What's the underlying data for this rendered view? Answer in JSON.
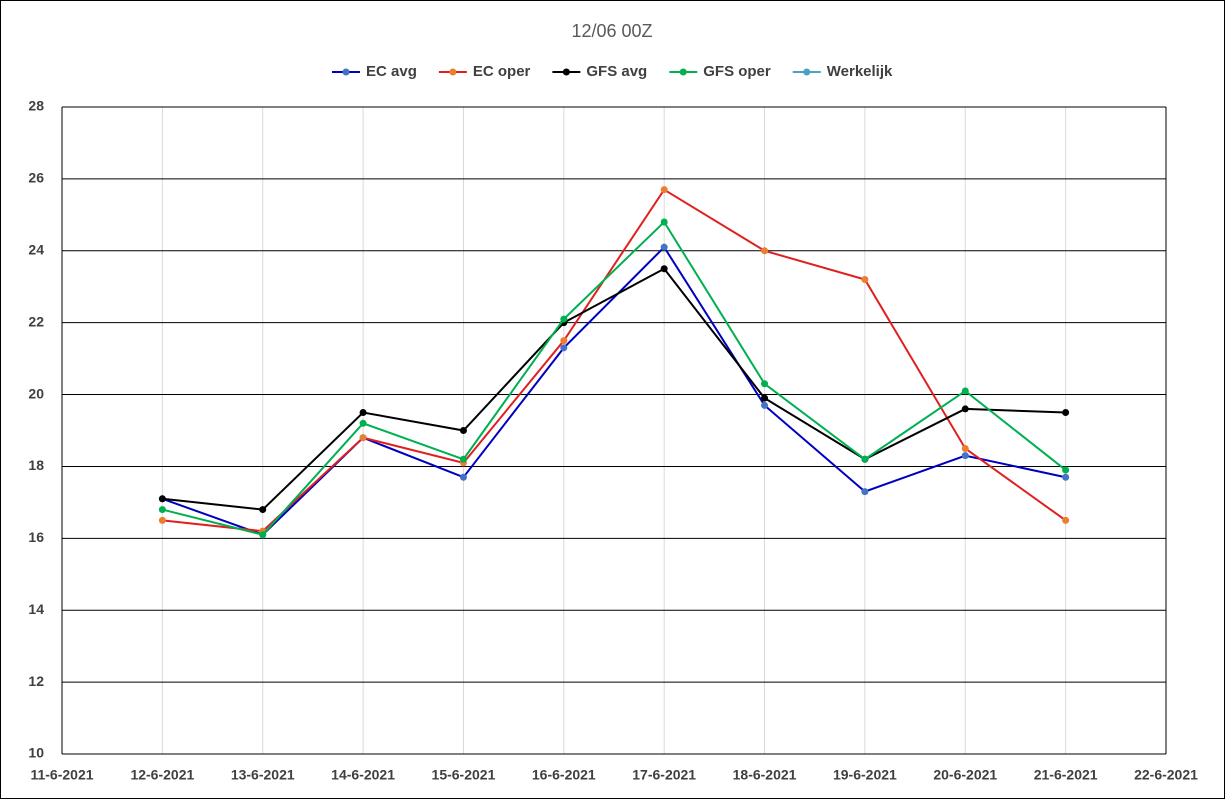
{
  "chart_data": {
    "type": "line",
    "title": "12/06 00Z",
    "categories": [
      "11-6-2021",
      "12-6-2021",
      "13-6-2021",
      "14-6-2021",
      "15-6-2021",
      "16-6-2021",
      "17-6-2021",
      "18-6-2021",
      "19-6-2021",
      "20-6-2021",
      "21-6-2021",
      "22-6-2021"
    ],
    "series": [
      {
        "name": "EC avg",
        "color": "#0000c0",
        "marker_color": "#4472c4",
        "values": [
          null,
          17.1,
          16.1,
          18.8,
          17.7,
          21.3,
          24.1,
          19.7,
          17.3,
          18.3,
          17.7,
          null
        ]
      },
      {
        "name": "EC oper",
        "color": "#e02020",
        "marker_color": "#ed7d31",
        "values": [
          null,
          16.5,
          16.2,
          18.8,
          18.1,
          21.5,
          25.7,
          24.0,
          23.2,
          18.5,
          16.5,
          null
        ]
      },
      {
        "name": "GFS avg",
        "color": "#000000",
        "marker_color": "#000000",
        "values": [
          null,
          17.1,
          16.8,
          19.5,
          19.0,
          22.0,
          23.5,
          19.9,
          18.2,
          19.6,
          19.5,
          null
        ]
      },
      {
        "name": "GFS oper",
        "color": "#00b050",
        "marker_color": "#00b050",
        "values": [
          null,
          16.8,
          16.1,
          19.2,
          18.2,
          22.1,
          24.8,
          20.3,
          18.2,
          20.1,
          17.9,
          null
        ]
      },
      {
        "name": "Werkelijk",
        "color": "#4ba3c3",
        "marker_color": "#4ba3c3",
        "values": [
          null,
          null,
          null,
          null,
          null,
          null,
          null,
          null,
          null,
          null,
          null,
          null
        ]
      }
    ],
    "ylim": [
      10,
      28
    ],
    "yticks": [
      10,
      12,
      14,
      16,
      18,
      20,
      22,
      24,
      26,
      28
    ],
    "grid": true,
    "legend": "top"
  }
}
